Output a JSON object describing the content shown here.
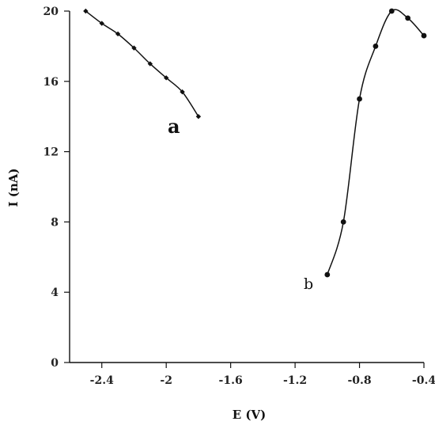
{
  "chart_data": {
    "type": "line",
    "xlabel": "E (V)",
    "ylabel": "I (nA)",
    "xlim": [
      -2.6,
      -0.4
    ],
    "ylim": [
      0,
      20
    ],
    "x_ticks": [
      -2.4,
      -2.0,
      -1.6,
      -1.2,
      -0.8,
      -0.4
    ],
    "x_tick_labels": [
      "-2.4",
      "-2",
      "-1.6",
      "-1.2",
      "-0.8",
      "-0.4"
    ],
    "y_ticks": [
      0,
      4,
      8,
      12,
      16,
      20
    ],
    "y_tick_labels": [
      "0",
      "4",
      "8",
      "12",
      "16",
      "20"
    ],
    "grid": false,
    "series": [
      {
        "name": "a",
        "marker": "diamond",
        "x": [
          -2.5,
          -2.4,
          -2.3,
          -2.2,
          -2.1,
          -2.0,
          -1.9,
          -1.8
        ],
        "y": [
          20.0,
          19.3,
          18.7,
          17.9,
          17.0,
          16.2,
          15.4,
          14.0
        ]
      },
      {
        "name": "b",
        "marker": "circle",
        "x": [
          -1.0,
          -0.9,
          -0.8,
          -0.7,
          -0.6,
          -0.5,
          -0.4
        ],
        "y": [
          5.0,
          8.0,
          15.0,
          18.0,
          20.0,
          19.6,
          18.6
        ]
      }
    ],
    "colors": {
      "line": "#111111",
      "marker": "#111111"
    }
  }
}
